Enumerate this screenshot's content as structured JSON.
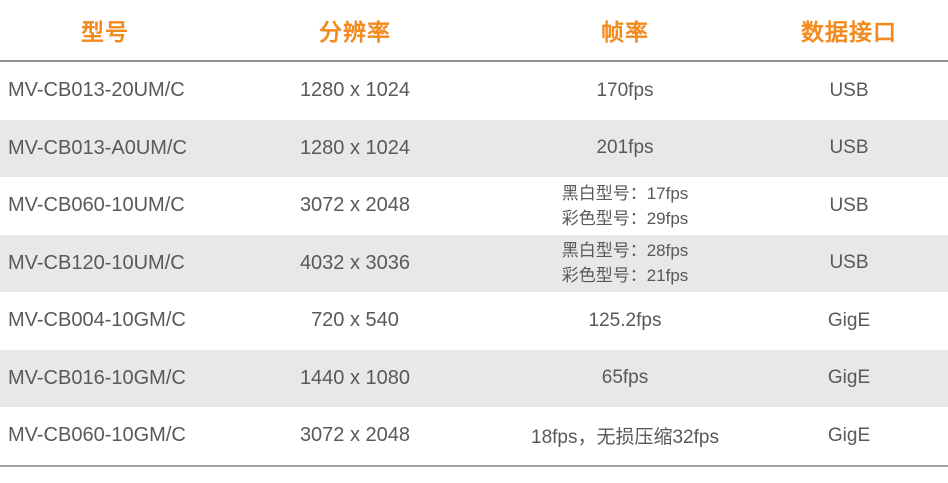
{
  "colors": {
    "header_text": "#f28a1e",
    "body_text": "#595959",
    "stripe_row": "#e8e8e8",
    "header_rule": "#8f8f8f",
    "bottom_rule": "#a0a0a0",
    "background": "#ffffff"
  },
  "table": {
    "columns": [
      {
        "key": "model",
        "label": "型号"
      },
      {
        "key": "resolution",
        "label": "分辨率"
      },
      {
        "key": "framerate",
        "label": "帧率"
      },
      {
        "key": "interface",
        "label": "数据接口"
      }
    ],
    "rows": [
      {
        "model": "MV-CB013-20UM/C",
        "resolution": "1280 x 1024",
        "framerate": [
          "170fps"
        ],
        "interface": "USB"
      },
      {
        "model": "MV-CB013-A0UM/C",
        "resolution": "1280 x 1024",
        "framerate": [
          "201fps"
        ],
        "interface": "USB"
      },
      {
        "model": "MV-CB060-10UM/C",
        "resolution": "3072 x 2048",
        "framerate": [
          "黑白型号：17fps",
          "彩色型号：29fps"
        ],
        "interface": "USB"
      },
      {
        "model": "MV-CB120-10UM/C",
        "resolution": "4032 x 3036",
        "framerate": [
          "黑白型号：28fps",
          "彩色型号：21fps"
        ],
        "interface": "USB"
      },
      {
        "model": "MV-CB004-10GM/C",
        "resolution": "720 x 540",
        "framerate": [
          "125.2fps"
        ],
        "interface": "GigE"
      },
      {
        "model": "MV-CB016-10GM/C",
        "resolution": "1440 x 1080",
        "framerate": [
          "65fps"
        ],
        "interface": "GigE"
      },
      {
        "model": "MV-CB060-10GM/C",
        "resolution": "3072 x 2048",
        "framerate": [
          "18fps，无损压缩32fps"
        ],
        "interface": "GigE"
      }
    ]
  }
}
